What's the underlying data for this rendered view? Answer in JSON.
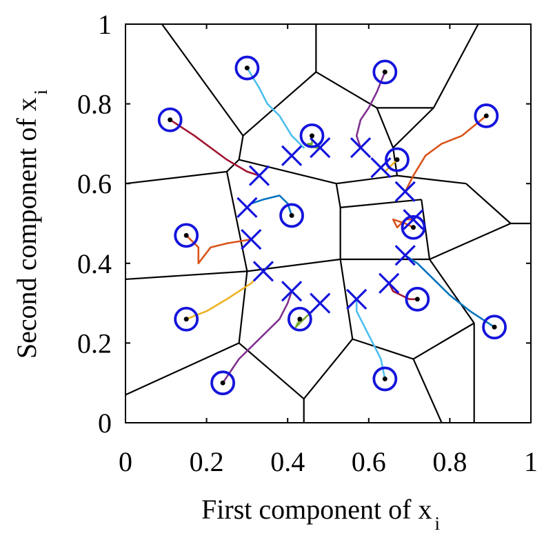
{
  "chart_data": {
    "type": "scatter",
    "xlabel": "First component of x",
    "xlabel_subscript": "i",
    "ylabel": "Second component of x",
    "ylabel_subscript": "i",
    "xlim": [
      0,
      1
    ],
    "ylim": [
      0,
      1
    ],
    "xticks": [
      "0",
      "0.2",
      "0.4",
      "0.6",
      "0.8",
      "1"
    ],
    "yticks": [
      "0",
      "0.2",
      "0.4",
      "0.6",
      "0.8",
      "1"
    ],
    "grid": false,
    "box": true,
    "marker_color": "#1414dc",
    "edge_color": "#000000",
    "final_positions": [
      [
        0.3,
        0.89
      ],
      [
        0.64,
        0.88
      ],
      [
        0.11,
        0.76
      ],
      [
        0.89,
        0.77
      ],
      [
        0.46,
        0.72
      ],
      [
        0.67,
        0.66
      ],
      [
        0.41,
        0.52
      ],
      [
        0.71,
        0.49
      ],
      [
        0.15,
        0.47
      ],
      [
        0.72,
        0.31
      ],
      [
        0.15,
        0.26
      ],
      [
        0.43,
        0.26
      ],
      [
        0.24,
        0.1
      ],
      [
        0.64,
        0.11
      ],
      [
        0.91,
        0.24
      ]
    ],
    "target_points": [
      [
        0.41,
        0.67
      ],
      [
        0.48,
        0.69
      ],
      [
        0.58,
        0.69
      ],
      [
        0.63,
        0.64
      ],
      [
        0.33,
        0.62
      ],
      [
        0.3,
        0.54
      ],
      [
        0.69,
        0.58
      ],
      [
        0.71,
        0.51
      ],
      [
        0.31,
        0.46
      ],
      [
        0.69,
        0.42
      ],
      [
        0.34,
        0.38
      ],
      [
        0.41,
        0.33
      ],
      [
        0.48,
        0.3
      ],
      [
        0.57,
        0.31
      ],
      [
        0.65,
        0.35
      ]
    ],
    "voronoi_edges": [
      [
        [
          0.09,
          1.0
        ],
        [
          0.29,
          0.72
        ]
      ],
      [
        [
          0.47,
          1.0
        ],
        [
          0.47,
          0.88
        ]
      ],
      [
        [
          0.87,
          1.0
        ],
        [
          0.76,
          0.79
        ]
      ],
      [
        [
          0.29,
          0.72
        ],
        [
          0.47,
          0.88
        ]
      ],
      [
        [
          0.47,
          0.88
        ],
        [
          0.62,
          0.79
        ]
      ],
      [
        [
          0.62,
          0.79
        ],
        [
          0.76,
          0.79
        ]
      ],
      [
        [
          0.29,
          0.72
        ],
        [
          0.28,
          0.66
        ]
      ],
      [
        [
          0.62,
          0.79
        ],
        [
          0.66,
          0.69
        ]
      ],
      [
        [
          0.76,
          0.79
        ],
        [
          0.66,
          0.69
        ]
      ],
      [
        [
          0.66,
          0.69
        ],
        [
          0.67,
          0.62
        ]
      ],
      [
        [
          0.0,
          0.6
        ],
        [
          0.25,
          0.63
        ]
      ],
      [
        [
          0.25,
          0.63
        ],
        [
          0.28,
          0.66
        ]
      ],
      [
        [
          0.28,
          0.66
        ],
        [
          0.52,
          0.6
        ]
      ],
      [
        [
          0.52,
          0.6
        ],
        [
          0.67,
          0.62
        ]
      ],
      [
        [
          0.25,
          0.63
        ],
        [
          0.3,
          0.38
        ]
      ],
      [
        [
          0.52,
          0.6
        ],
        [
          0.53,
          0.54
        ]
      ],
      [
        [
          0.67,
          0.62
        ],
        [
          0.84,
          0.6
        ]
      ],
      [
        [
          0.84,
          0.6
        ],
        [
          0.95,
          0.5
        ]
      ],
      [
        [
          0.95,
          0.5
        ],
        [
          1.0,
          0.5
        ]
      ],
      [
        [
          0.53,
          0.54
        ],
        [
          0.73,
          0.56
        ]
      ],
      [
        [
          0.53,
          0.54
        ],
        [
          0.53,
          0.41
        ]
      ],
      [
        [
          0.73,
          0.56
        ],
        [
          0.75,
          0.41
        ]
      ],
      [
        [
          0.75,
          0.41
        ],
        [
          0.95,
          0.5
        ]
      ],
      [
        [
          0.0,
          0.36
        ],
        [
          0.3,
          0.38
        ]
      ],
      [
        [
          0.3,
          0.38
        ],
        [
          0.53,
          0.41
        ]
      ],
      [
        [
          0.53,
          0.41
        ],
        [
          0.75,
          0.41
        ]
      ],
      [
        [
          0.75,
          0.41
        ],
        [
          0.86,
          0.25
        ]
      ],
      [
        [
          0.86,
          0.25
        ],
        [
          0.86,
          0.0
        ]
      ],
      [
        [
          0.3,
          0.38
        ],
        [
          0.28,
          0.2
        ]
      ],
      [
        [
          0.28,
          0.2
        ],
        [
          0.0,
          0.07
        ]
      ],
      [
        [
          0.28,
          0.2
        ],
        [
          0.44,
          0.06
        ]
      ],
      [
        [
          0.44,
          0.06
        ],
        [
          0.44,
          0.0
        ]
      ],
      [
        [
          0.44,
          0.06
        ],
        [
          0.56,
          0.21
        ]
      ],
      [
        [
          0.56,
          0.21
        ],
        [
          0.53,
          0.41
        ]
      ],
      [
        [
          0.56,
          0.21
        ],
        [
          0.71,
          0.16
        ]
      ],
      [
        [
          0.71,
          0.16
        ],
        [
          0.86,
          0.25
        ]
      ],
      [
        [
          0.71,
          0.16
        ],
        [
          0.78,
          0.0
        ]
      ]
    ],
    "paths": [
      {
        "color": "#4dbeee",
        "points": [
          [
            0.3,
            0.89
          ],
          [
            0.33,
            0.84
          ],
          [
            0.35,
            0.8
          ],
          [
            0.38,
            0.77
          ],
          [
            0.41,
            0.72
          ],
          [
            0.44,
            0.69
          ]
        ]
      },
      {
        "color": "#7e2f8e",
        "points": [
          [
            0.64,
            0.88
          ],
          [
            0.62,
            0.83
          ],
          [
            0.6,
            0.79
          ],
          [
            0.58,
            0.76
          ],
          [
            0.57,
            0.72
          ],
          [
            0.58,
            0.69
          ]
        ]
      },
      {
        "color": "#a2142f",
        "points": [
          [
            0.11,
            0.76
          ],
          [
            0.17,
            0.72
          ],
          [
            0.21,
            0.69
          ],
          [
            0.25,
            0.66
          ],
          [
            0.3,
            0.63
          ],
          [
            0.33,
            0.62
          ]
        ]
      },
      {
        "color": "#d95319",
        "points": [
          [
            0.89,
            0.77
          ],
          [
            0.83,
            0.72
          ],
          [
            0.78,
            0.7
          ],
          [
            0.74,
            0.67
          ],
          [
            0.71,
            0.62
          ],
          [
            0.69,
            0.58
          ]
        ]
      },
      {
        "color": "#77ac30",
        "points": [
          [
            0.46,
            0.72
          ],
          [
            0.46,
            0.7
          ],
          [
            0.45,
            0.7
          ],
          [
            0.47,
            0.69
          ],
          [
            0.48,
            0.69
          ]
        ]
      },
      {
        "color": "#edb120",
        "points": [
          [
            0.67,
            0.66
          ],
          [
            0.66,
            0.65
          ],
          [
            0.65,
            0.64
          ],
          [
            0.64,
            0.63
          ],
          [
            0.63,
            0.64
          ]
        ]
      },
      {
        "color": "#0072bd",
        "points": [
          [
            0.41,
            0.52
          ],
          [
            0.4,
            0.55
          ],
          [
            0.38,
            0.57
          ],
          [
            0.34,
            0.56
          ],
          [
            0.31,
            0.55
          ],
          [
            0.3,
            0.54
          ]
        ]
      },
      {
        "color": "#d95319",
        "points": [
          [
            0.71,
            0.49
          ],
          [
            0.69,
            0.5
          ],
          [
            0.66,
            0.51
          ],
          [
            0.67,
            0.49
          ],
          [
            0.69,
            0.51
          ],
          [
            0.71,
            0.51
          ]
        ]
      },
      {
        "color": "#d95319",
        "points": [
          [
            0.15,
            0.47
          ],
          [
            0.18,
            0.44
          ],
          [
            0.18,
            0.4
          ],
          [
            0.21,
            0.44
          ],
          [
            0.25,
            0.45
          ],
          [
            0.31,
            0.46
          ]
        ]
      },
      {
        "color": "#a2142f",
        "points": [
          [
            0.72,
            0.31
          ],
          [
            0.7,
            0.31
          ],
          [
            0.68,
            0.32
          ],
          [
            0.66,
            0.33
          ],
          [
            0.65,
            0.35
          ]
        ]
      },
      {
        "color": "#edb120",
        "points": [
          [
            0.15,
            0.26
          ],
          [
            0.2,
            0.28
          ],
          [
            0.25,
            0.31
          ],
          [
            0.28,
            0.33
          ],
          [
            0.31,
            0.35
          ],
          [
            0.34,
            0.38
          ]
        ]
      },
      {
        "color": "#77ac30",
        "points": [
          [
            0.43,
            0.26
          ],
          [
            0.42,
            0.24
          ],
          [
            0.44,
            0.26
          ],
          [
            0.46,
            0.28
          ],
          [
            0.48,
            0.3
          ]
        ]
      },
      {
        "color": "#7e2f8e",
        "points": [
          [
            0.24,
            0.1
          ],
          [
            0.28,
            0.16
          ],
          [
            0.33,
            0.21
          ],
          [
            0.38,
            0.26
          ],
          [
            0.4,
            0.3
          ],
          [
            0.41,
            0.33
          ]
        ]
      },
      {
        "color": "#4dbeee",
        "points": [
          [
            0.64,
            0.11
          ],
          [
            0.63,
            0.16
          ],
          [
            0.61,
            0.2
          ],
          [
            0.59,
            0.24
          ],
          [
            0.57,
            0.28
          ],
          [
            0.57,
            0.31
          ]
        ]
      },
      {
        "color": "#0072bd",
        "points": [
          [
            0.91,
            0.24
          ],
          [
            0.85,
            0.28
          ],
          [
            0.8,
            0.32
          ],
          [
            0.76,
            0.36
          ],
          [
            0.72,
            0.4
          ],
          [
            0.69,
            0.42
          ]
        ]
      }
    ]
  }
}
